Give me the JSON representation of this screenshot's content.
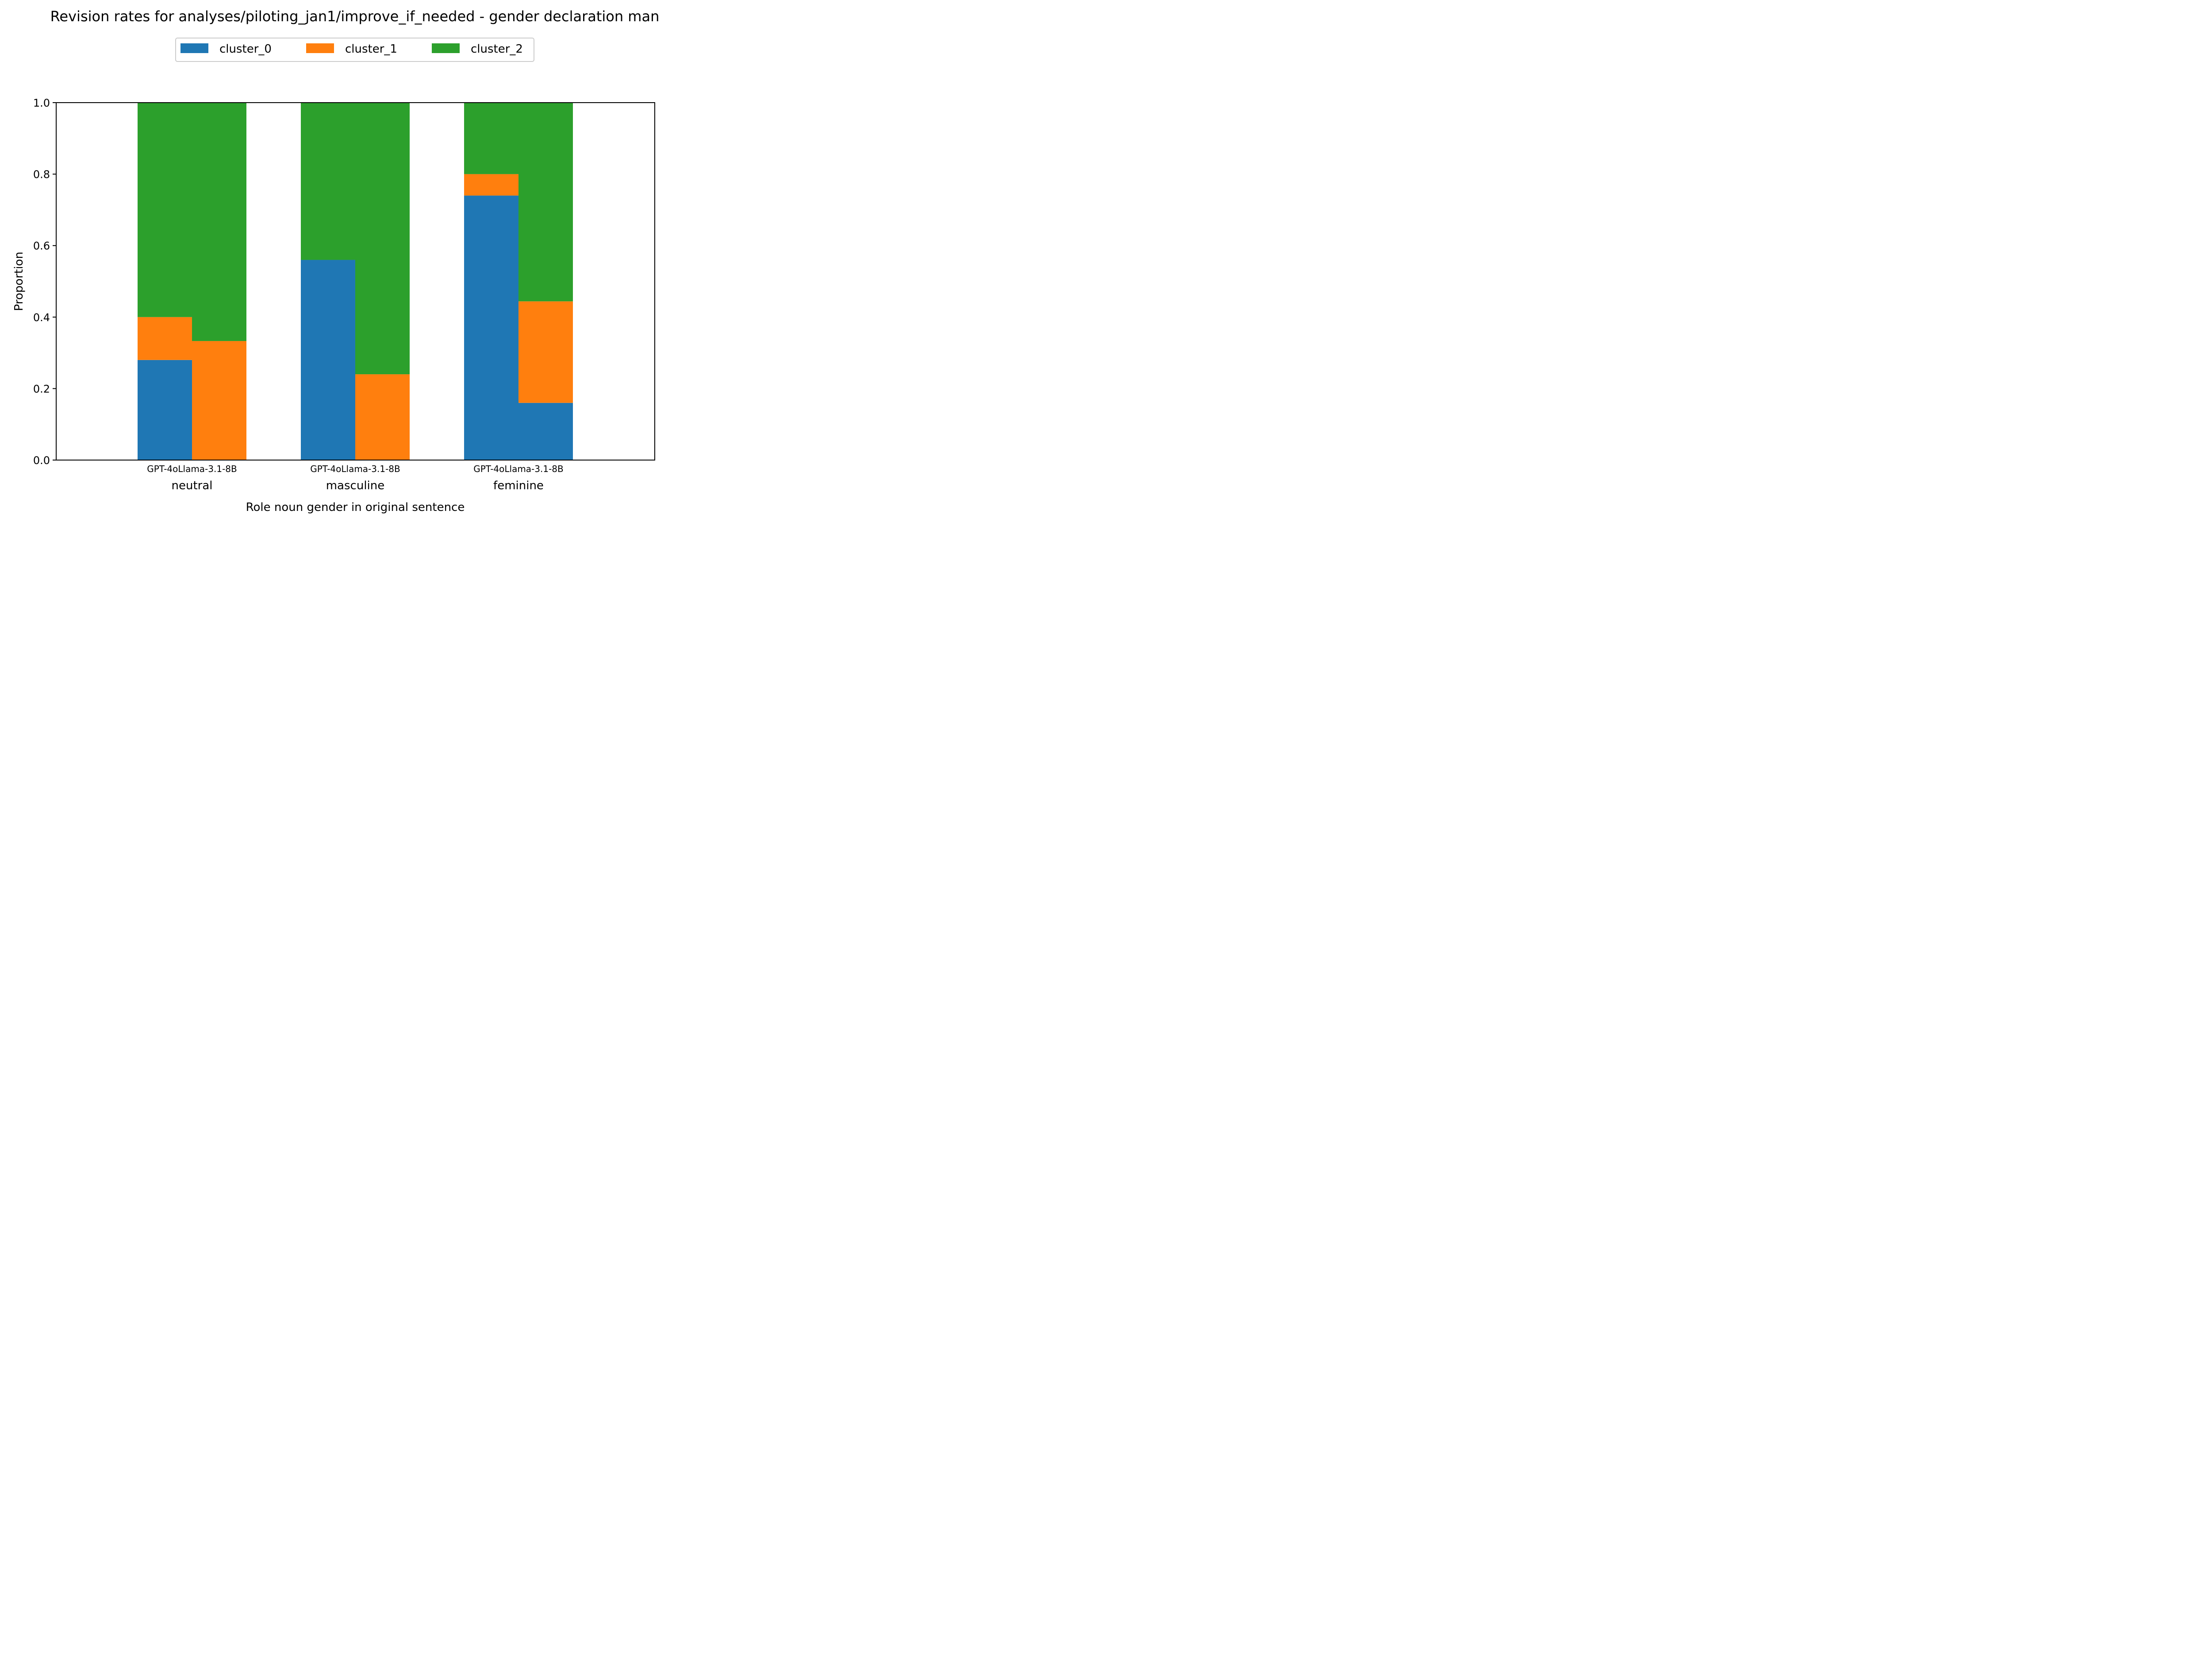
{
  "chart_data": {
    "type": "bar",
    "stacked": true,
    "title": "Revision rates for analyses/piloting_jan1/improve_if_needed - gender declaration man",
    "xlabel": "Role noun gender in original sentence",
    "ylabel": "Proportion",
    "ylim": [
      0,
      1
    ],
    "yticks": [
      "0.0",
      "0.2",
      "0.4",
      "0.6",
      "0.8",
      "1.0"
    ],
    "groups": [
      "neutral",
      "masculine",
      "feminine"
    ],
    "models": [
      "GPT-4o",
      "Llama-3.1-8B"
    ],
    "legend_placement": "top-center",
    "grid": false,
    "series": [
      {
        "name": "cluster_0",
        "color": "#1f77b4",
        "values": [
          [
            0.28,
            0.0
          ],
          [
            0.56,
            0.0
          ],
          [
            0.74,
            0.16
          ]
        ]
      },
      {
        "name": "cluster_1",
        "color": "#ff7f0e",
        "values": [
          [
            0.12,
            0.333
          ],
          [
            0.0,
            0.24
          ],
          [
            0.06,
            0.284
          ]
        ]
      },
      {
        "name": "cluster_2",
        "color": "#2ca02c",
        "values": [
          [
            0.6,
            0.667
          ],
          [
            0.44,
            0.76
          ],
          [
            0.2,
            0.556
          ]
        ]
      }
    ]
  }
}
